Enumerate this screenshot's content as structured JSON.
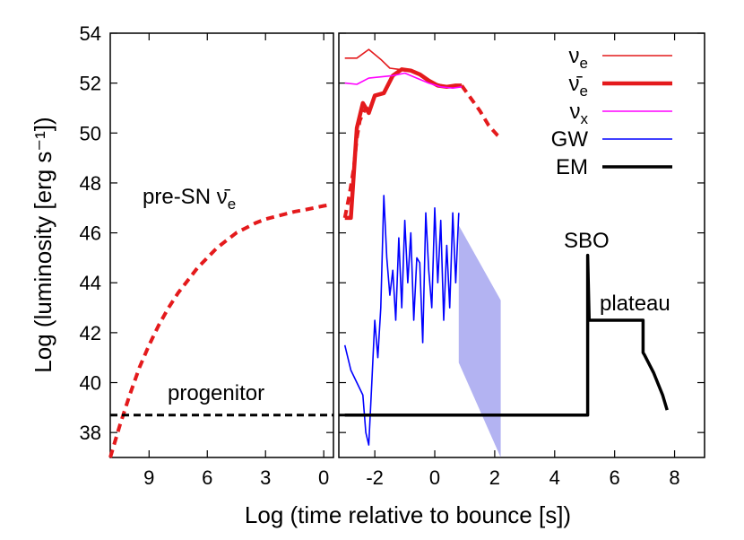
{
  "chart_data": {
    "type": "line",
    "ylabel": "Log (luminosity [erg s⁻¹])",
    "xlabel": "Log (time relative  to bounce [s])",
    "ylim": [
      37,
      54
    ],
    "yticks": [
      38,
      40,
      42,
      44,
      46,
      48,
      50,
      52,
      54
    ],
    "left_panel": {
      "x_axis": "log time before bounce (reversed)",
      "xlim": [
        11,
        -0.5
      ],
      "xticks": [
        9,
        6,
        3,
        0
      ],
      "series": [
        {
          "name": "pre-SN ν̄e",
          "style": "red-dashed",
          "x": [
            11,
            10.5,
            10,
            9.5,
            9,
            8.5,
            8,
            7.5,
            7,
            6.5,
            6,
            5.5,
            5,
            4.5,
            4,
            3.5,
            3,
            2.5,
            2,
            1.5,
            1,
            0.5,
            0,
            -0.3
          ],
          "y": [
            37.0,
            38.3,
            39.5,
            40.6,
            41.5,
            42.3,
            43.0,
            43.6,
            44.1,
            44.6,
            45.0,
            45.4,
            45.7,
            46.0,
            46.2,
            46.4,
            46.55,
            46.65,
            46.75,
            46.85,
            46.92,
            47.0,
            47.08,
            47.12
          ]
        },
        {
          "name": "progenitor",
          "style": "black-dashed",
          "x": [
            11,
            -0.5
          ],
          "y": [
            38.7,
            38.7
          ]
        }
      ],
      "annotations": [
        "pre-SN ν̄e",
        "progenitor"
      ]
    },
    "right_panel": {
      "x_axis": "log time after bounce",
      "xlim": [
        -3.2,
        9
      ],
      "xticks": [
        -2,
        0,
        2,
        4,
        6,
        8
      ],
      "series": [
        {
          "name": "νe",
          "color": "#e41a1c",
          "x": [
            -3.0,
            -2.6,
            -2.2,
            -1.8,
            -1.5,
            -1.2,
            -0.9,
            -0.6,
            -0.3,
            0.0,
            0.3,
            0.6,
            0.9
          ],
          "y": [
            53.0,
            53.0,
            53.35,
            52.95,
            52.6,
            52.55,
            52.5,
            52.4,
            52.2,
            52.0,
            51.9,
            51.9,
            51.95
          ]
        },
        {
          "name": "ν̄e",
          "color": "#e41a1c",
          "x": [
            -3.0,
            -2.8,
            -2.6,
            -2.4,
            -2.2,
            -2.0,
            -1.7,
            -1.4,
            -1.1,
            -0.8,
            -0.5,
            -0.2,
            0.1,
            0.4,
            0.7,
            0.9
          ],
          "y": [
            46.6,
            46.6,
            50.2,
            51.2,
            50.8,
            51.5,
            51.6,
            52.3,
            52.55,
            52.5,
            52.35,
            52.1,
            51.9,
            51.85,
            51.9,
            51.9
          ]
        },
        {
          "name": "ν̄e (dashed extension)",
          "color": "#e41a1c",
          "x": [
            -3.0,
            -2.85,
            -2.7,
            -2.6,
            -2.5,
            -2.35,
            -2.2
          ],
          "y": [
            46.6,
            47.5,
            48.6,
            49.8,
            50.5,
            50.9,
            51.0
          ]
        },
        {
          "name": "ν̄e (late dashed)",
          "color": "#e41a1c",
          "x": [
            0.9,
            1.2,
            1.5,
            1.8,
            2.1,
            2.2
          ],
          "y": [
            51.9,
            51.4,
            50.9,
            50.3,
            49.9,
            49.8
          ]
        },
        {
          "name": "νx",
          "color": "#ff00ff",
          "x": [
            -3.0,
            -2.6,
            -2.2,
            -1.8,
            -1.4,
            -1.0,
            -0.6,
            -0.2,
            0.2,
            0.6,
            0.9
          ],
          "y": [
            52.0,
            51.95,
            52.2,
            52.25,
            52.3,
            52.4,
            52.2,
            52.0,
            51.85,
            51.8,
            51.85
          ]
        },
        {
          "name": "GW",
          "color": "#0000ff",
          "x": [
            -3.0,
            -2.8,
            -2.6,
            -2.4,
            -2.3,
            -2.2,
            -2.1,
            -2.0,
            -1.9,
            -1.8,
            -1.7,
            -1.6,
            -1.5,
            -1.4,
            -1.3,
            -1.2,
            -1.1,
            -1.0,
            -0.9,
            -0.8,
            -0.7,
            -0.6,
            -0.5,
            -0.4,
            -0.3,
            -0.2,
            -0.1,
            0.0,
            0.1,
            0.2,
            0.3,
            0.4,
            0.5,
            0.6,
            0.7,
            0.8
          ],
          "y": [
            41.5,
            40.5,
            40.0,
            39.5,
            38.0,
            37.5,
            40.0,
            42.5,
            41.0,
            43.0,
            47.5,
            45.0,
            43.5,
            44.5,
            42.5,
            45.8,
            43.0,
            46.5,
            44.0,
            46.0,
            42.5,
            45.0,
            44.8,
            41.6,
            46.8,
            44.5,
            43.0,
            47.0,
            44.0,
            46.5,
            42.5,
            45.5,
            43.0,
            46.8,
            44.0,
            46.8
          ]
        },
        {
          "name": "EM",
          "color": "#000000",
          "x": [
            -3.0,
            5.1,
            5.1,
            5.15,
            5.15,
            6.95,
            6.95,
            7.0,
            7.3,
            7.6,
            7.75
          ],
          "y": [
            38.7,
            38.7,
            45.1,
            42.6,
            42.5,
            42.5,
            41.2,
            41.1,
            40.4,
            39.5,
            38.9
          ]
        }
      ],
      "gw_band": {
        "x": [
          0.8,
          2.2
        ],
        "y_top": [
          46.3,
          43.3
        ],
        "y_bottom": [
          40.8,
          37.0
        ]
      },
      "annotations": [
        "SBO",
        "plateau"
      ]
    },
    "legend": {
      "placement": "top-right",
      "entries": [
        {
          "label": "νe",
          "color": "#e41a1c"
        },
        {
          "label": "ν̄e",
          "color": "#e41a1c"
        },
        {
          "label": "νx",
          "color": "#ff00ff"
        },
        {
          "label": "GW",
          "color": "#0000ff"
        },
        {
          "label": "EM",
          "color": "#000000"
        }
      ]
    },
    "labels": {
      "pre_sn_prefix": "pre-SN ",
      "nu": "ν",
      "nu_bar": "ν̄",
      "sub_e": "e",
      "sub_x": "x",
      "progenitor": "progenitor",
      "sbo": "SBO",
      "plateau": "plateau",
      "gw": "GW",
      "em": "EM"
    },
    "colors": {
      "red": "#e41a1c",
      "magenta": "#ff00ff",
      "blue": "#0000ff",
      "band": "#9999ee",
      "black": "#000000"
    }
  }
}
